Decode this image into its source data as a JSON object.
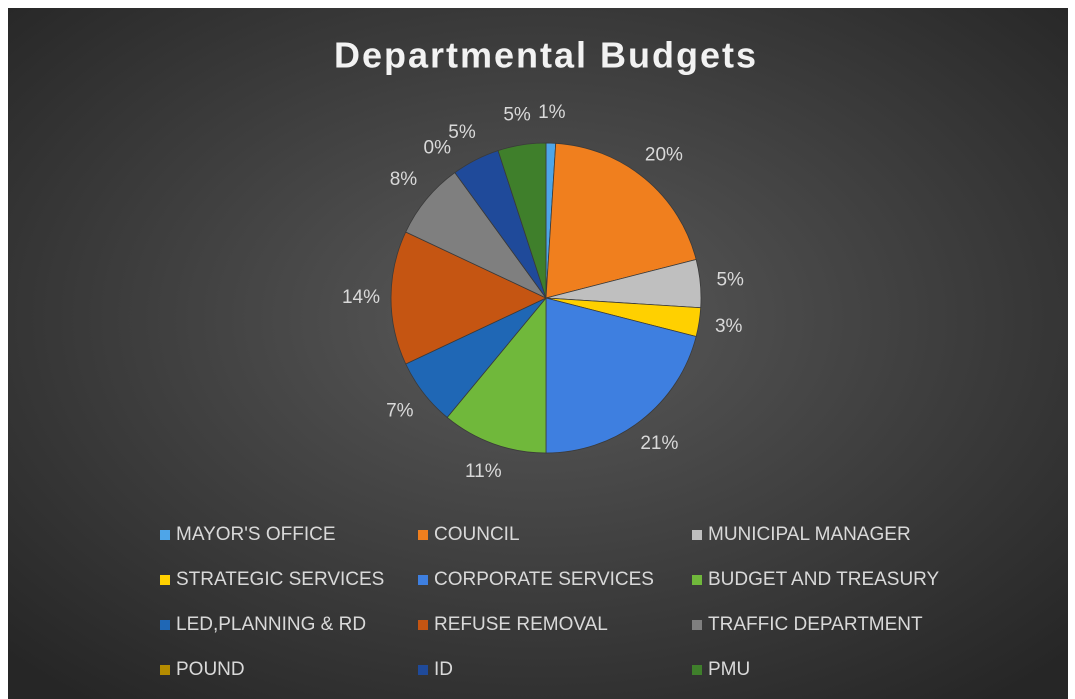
{
  "chart_data": {
    "type": "pie",
    "title": "Departmental Budgets",
    "categories": [
      "MAYOR'S OFFICE",
      "COUNCIL",
      "MUNICIPAL MANAGER",
      "STRATEGIC SERVICES",
      "CORPORATE SERVICES",
      "BUDGET AND TREASURY",
      "LED,PLANNING & RD",
      "REFUSE REMOVAL",
      "TRAFFIC DEPARTMENT",
      "POUND",
      "ID",
      "PMU"
    ],
    "values": [
      1,
      20,
      5,
      3,
      21,
      11,
      7,
      14,
      8,
      0,
      5,
      5
    ],
    "value_labels": [
      "1%",
      "20%",
      "5%",
      "3%",
      "21%",
      "11%",
      "7%",
      "14%",
      "8%",
      "0%",
      "5%",
      "5%"
    ],
    "colors": [
      "#4ea5e8",
      "#f07f1e",
      "#bfbfbf",
      "#ffd000",
      "#3e7fe0",
      "#70b83b",
      "#1f67b5",
      "#c55512",
      "#7f7f7f",
      "#b38b00",
      "#1f4a9a",
      "#3f7f2b"
    ],
    "legend": "bottom"
  }
}
